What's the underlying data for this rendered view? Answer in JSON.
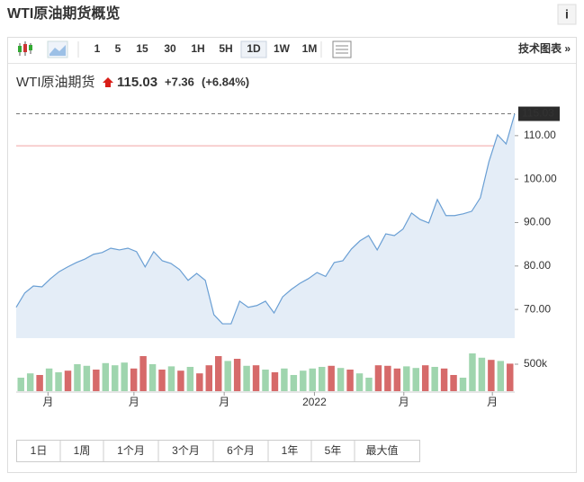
{
  "header": {
    "title": "WTI原油期货概览",
    "info": "i"
  },
  "toolbar": {
    "intervals": [
      "1",
      "5",
      "15",
      "30",
      "1H",
      "5H",
      "1D",
      "1W",
      "1M"
    ],
    "selected_index": 6,
    "tech_chart": "技术图表 »"
  },
  "quote": {
    "name": "WTI原油期货",
    "price": 115.03,
    "change": "+7.36",
    "change_pct": "(+6.84%)"
  },
  "chart_data": {
    "type": "area",
    "series": [
      {
        "color": "#6a9fd4",
        "fill": "#e4edf7",
        "values": [
          70.5,
          73.8,
          75.4,
          75.2,
          77.1,
          78.7,
          79.8,
          80.8,
          81.6,
          82.7,
          83.1,
          84.1,
          83.7,
          84.1,
          83.3,
          79.8,
          83.3,
          81.2,
          80.6,
          79.2,
          76.7,
          78.3,
          76.7,
          68.8,
          66.7,
          66.7,
          71.9,
          70.5,
          70.9,
          71.9,
          69.2,
          72.9,
          74.6,
          76.0,
          77.1,
          78.5,
          77.6,
          80.8,
          81.2,
          83.9,
          85.8,
          87.0,
          83.7,
          87.4,
          87.0,
          88.5,
          92.2,
          90.7,
          89.9,
          95.3,
          91.6,
          91.6,
          92.0,
          92.6,
          95.7,
          104.0,
          110.2,
          108.1,
          115.03
        ]
      }
    ],
    "xlim": [
      0,
      58
    ],
    "xticks": [
      {
        "value": 3.7,
        "label": "月"
      },
      {
        "value": 13.7,
        "label": "月"
      },
      {
        "value": 24.2,
        "label": "月"
      },
      {
        "value": 34.7,
        "label": "2022"
      },
      {
        "value": 45.1,
        "label": "月"
      },
      {
        "value": 55.4,
        "label": "月"
      }
    ],
    "ylim": [
      63.4,
      116.8
    ],
    "yticks": [
      {
        "value": 70,
        "label": "70.00"
      },
      {
        "value": 80,
        "label": "80.00"
      },
      {
        "value": 90,
        "label": "90.00"
      },
      {
        "value": 100,
        "label": "100.00"
      },
      {
        "value": 110,
        "label": "110.00"
      }
    ],
    "last_price": {
      "value": 115.03,
      "label": "115.03"
    },
    "prev_close": 107.67,
    "volume": {
      "values": [
        250000,
        330000,
        300000,
        420000,
        350000,
        380000,
        500000,
        470000,
        400000,
        520000,
        480000,
        530000,
        420000,
        650000,
        500000,
        400000,
        460000,
        380000,
        450000,
        330000,
        480000,
        650000,
        560000,
        600000,
        470000,
        480000,
        400000,
        350000,
        420000,
        300000,
        380000,
        420000,
        450000,
        470000,
        430000,
        400000,
        330000,
        250000,
        480000,
        470000,
        420000,
        460000,
        430000,
        480000,
        450000,
        420000,
        300000,
        250000,
        700000,
        620000,
        580000,
        560000,
        510000
      ],
      "colors": [
        "#9fd5ae",
        "#9fd5ae",
        "#d66a6a",
        "#9fd5ae",
        "#9fd5ae",
        "#d66a6a",
        "#9fd5ae",
        "#9fd5ae",
        "#d66a6a",
        "#9fd5ae",
        "#9fd5ae",
        "#9fd5ae",
        "#d66a6a",
        "#d66a6a",
        "#9fd5ae",
        "#d66a6a",
        "#9fd5ae",
        "#d66a6a",
        "#9fd5ae",
        "#d66a6a",
        "#d66a6a",
        "#d66a6a",
        "#9fd5ae",
        "#d66a6a",
        "#9fd5ae",
        "#d66a6a",
        "#9fd5ae",
        "#d66a6a",
        "#9fd5ae",
        "#9fd5ae",
        "#9fd5ae",
        "#9fd5ae",
        "#9fd5ae",
        "#d66a6a",
        "#9fd5ae",
        "#d66a6a",
        "#9fd5ae",
        "#9fd5ae",
        "#d66a6a",
        "#d66a6a",
        "#d66a6a",
        "#9fd5ae",
        "#9fd5ae",
        "#d66a6a",
        "#9fd5ae",
        "#d66a6a",
        "#d66a6a",
        "#9fd5ae",
        "#9fd5ae",
        "#9fd5ae",
        "#d66a6a",
        "#9fd5ae",
        "#d66a6a"
      ],
      "ylim": [
        0,
        833000
      ],
      "yticks": [
        {
          "value": 500000,
          "label": "500k"
        }
      ]
    }
  },
  "ranges": [
    "1日",
    "1周",
    "1个月",
    "3个月",
    "6个月",
    "1年",
    "5年",
    "最大值"
  ]
}
